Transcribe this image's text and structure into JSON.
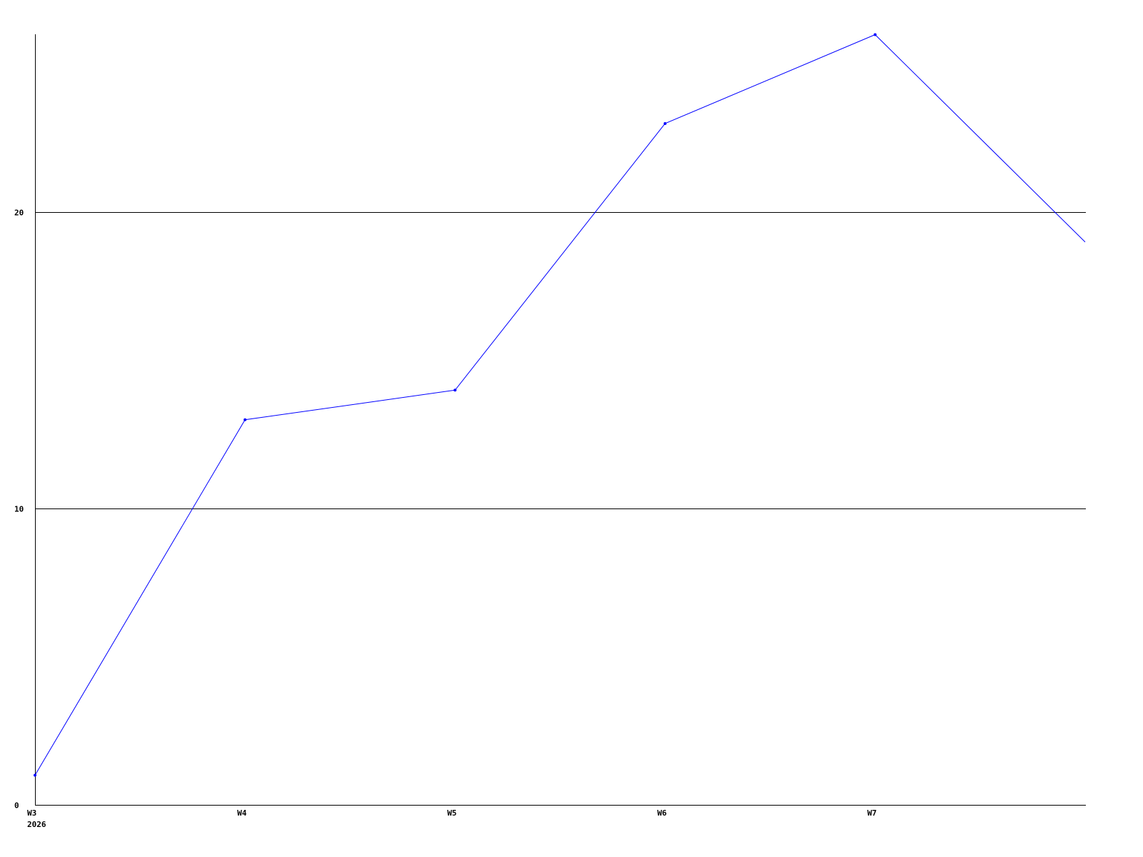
{
  "chart_data": {
    "type": "line",
    "title": "",
    "xlabel": "",
    "ylabel": "",
    "x_tick_labels": [
      "W3",
      "W4",
      "W5",
      "W6",
      "W7"
    ],
    "x_sub_label": "2026",
    "x": [
      0,
      1,
      2,
      3,
      4,
      5
    ],
    "series": [
      {
        "values": [
          1,
          13,
          14,
          23,
          26,
          19
        ],
        "color": "#0000ff"
      }
    ],
    "y_ticks": [
      0,
      10,
      20
    ],
    "ylim": [
      0,
      26
    ],
    "xlim": [
      0,
      5
    ],
    "grid": "horizontal",
    "legend": "none"
  }
}
